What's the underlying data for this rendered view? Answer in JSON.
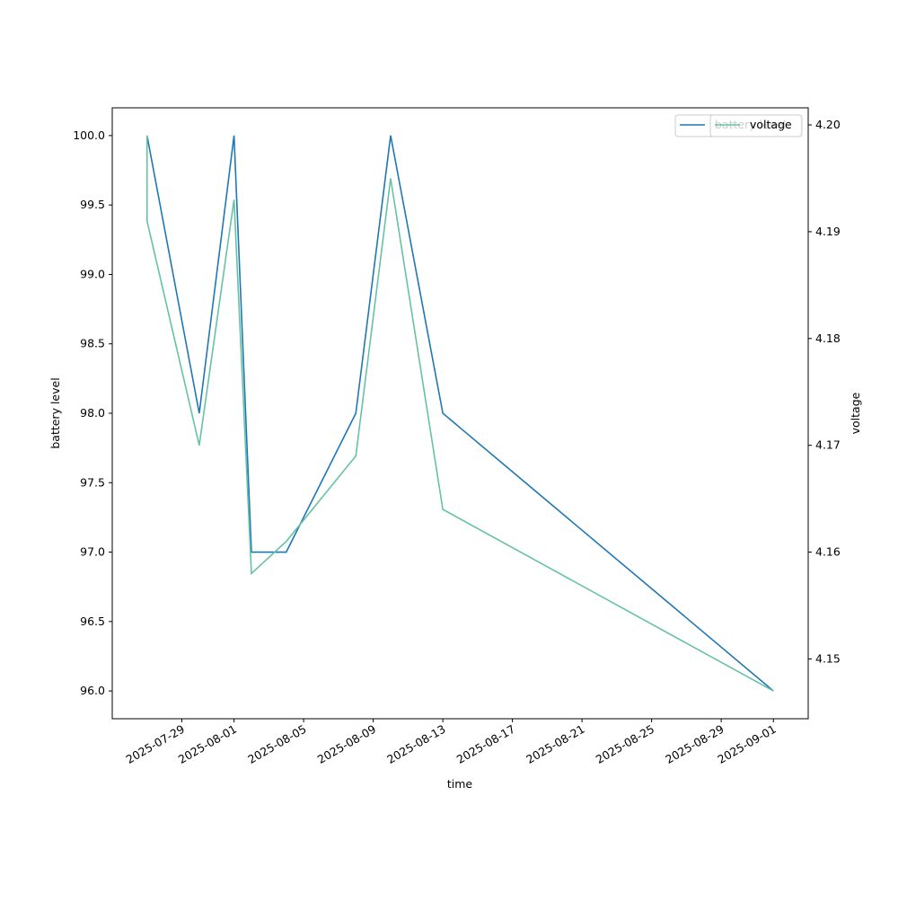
{
  "chart_data": {
    "type": "line",
    "x_label": "time",
    "y_label": "battery level",
    "y2_label": "voltage",
    "x": [
      "2025-07-27",
      "2025-07-27",
      "2025-07-30",
      "2025-08-01",
      "2025-08-01",
      "2025-08-02",
      "2025-08-04",
      "2025-08-08",
      "2025-08-10",
      "2025-08-13",
      "2025-09-01"
    ],
    "series": [
      {
        "name": "battery level",
        "color": "#1f77b4",
        "values": [
          100,
          100,
          98,
          100,
          100,
          97,
          97,
          98,
          100,
          98,
          96
        ]
      },
      {
        "name": "voltage",
        "color": "#66c2a5",
        "axis": "y2",
        "values": [
          4.199,
          4.191,
          4.17,
          4.193,
          4.193,
          4.158,
          4.161,
          4.169,
          4.195,
          4.164,
          4.147
        ]
      }
    ],
    "xlim": [
      "2025-07-25",
      "2025-09-03"
    ],
    "xticks": [
      "2025-07-29",
      "2025-08-01",
      "2025-08-05",
      "2025-08-09",
      "2025-08-13",
      "2025-08-17",
      "2025-08-21",
      "2025-08-25",
      "2025-08-29",
      "2025-09-01"
    ],
    "ylim": [
      95.8,
      100.2
    ],
    "yticks": [
      {
        "value": 96,
        "label": "96.0"
      },
      {
        "value": 96.5,
        "label": "96.5"
      },
      {
        "value": 97,
        "label": "97.0"
      },
      {
        "value": 97.5,
        "label": "97.5"
      },
      {
        "value": 98,
        "label": "98.0"
      },
      {
        "value": 98.5,
        "label": "98.5"
      },
      {
        "value": 99,
        "label": "99.0"
      },
      {
        "value": 99.5,
        "label": "99.5"
      },
      {
        "value": 100,
        "label": "100.0"
      }
    ],
    "y2lim": [
      4.1444,
      4.2016
    ],
    "y2ticks": [
      {
        "value": 4.15,
        "label": "4.15"
      },
      {
        "value": 4.16,
        "label": "4.16"
      },
      {
        "value": 4.17,
        "label": "4.17"
      },
      {
        "value": 4.18,
        "label": "4.18"
      },
      {
        "value": 4.19,
        "label": "4.19"
      },
      {
        "value": 4.2,
        "label": "4.20"
      }
    ],
    "legend": "upper right"
  }
}
